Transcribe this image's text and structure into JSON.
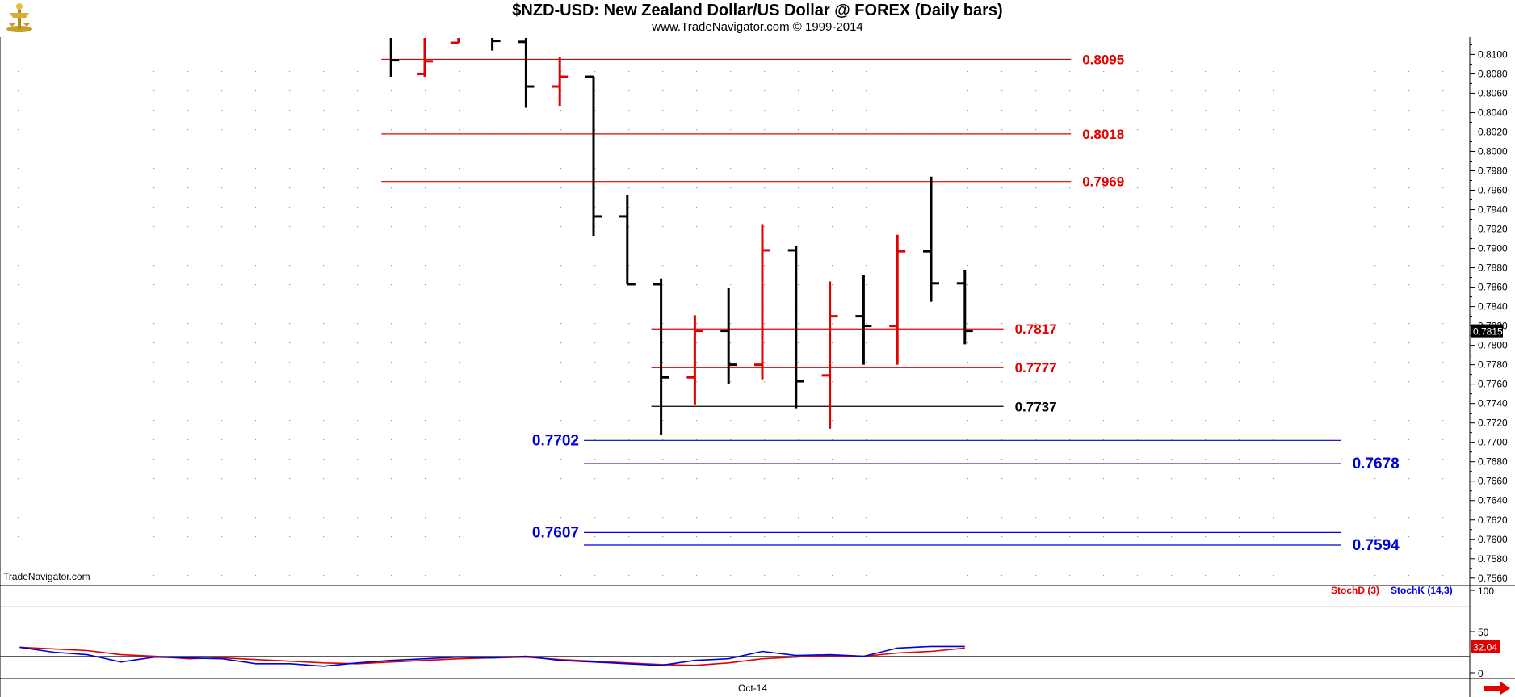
{
  "header": {
    "title": "$NZD-USD:  New Zealand Dollar/US Dollar @ FOREX  (Daily bars)",
    "subtitle": "www.TradeNavigator.com © 1999-2014"
  },
  "watermark": "TradeNavigator.com",
  "indicator_legend": {
    "stoch_d": "StochD (3)",
    "stoch_k": "StochK (14,3)"
  },
  "colors": {
    "up_bar": "#e00000",
    "down_bar": "#000000",
    "red_level": "#e00000",
    "blue_level": "#0000dd",
    "black_level": "#000000",
    "stoch_d": "#e00000",
    "stoch_k": "#0000dd",
    "grid_dot": "#9a9a9a"
  },
  "chart_data": [
    {
      "type": "ohlc",
      "title": "$NZD-USD:  New Zealand Dollar/US Dollar @ FOREX  (Daily bars)",
      "ylim": [
        0.7554,
        0.8117
      ],
      "y_ticks": [
        "0.8100",
        "0.8080",
        "0.8060",
        "0.8040",
        "0.8020",
        "0.8000",
        "0.7980",
        "0.7960",
        "0.7940",
        "0.7920",
        "0.7900",
        "0.7880",
        "0.7860",
        "0.7840",
        "0.7820",
        "0.7800",
        "0.7780",
        "0.7760",
        "0.7740",
        "0.7720",
        "0.7700",
        "0.7680",
        "0.7660",
        "0.7640",
        "0.7620",
        "0.7600",
        "0.7580",
        "0.7560"
      ],
      "x_labels": [
        {
          "label": "Oct-14",
          "bar": 10
        }
      ],
      "last_price": "0.7815",
      "bars": [
        {
          "i": -1,
          "o": 0.812,
          "h": 0.8125,
          "l": 0.8077,
          "c": 0.8094
        },
        {
          "i": 0,
          "o": 0.808,
          "h": 0.8125,
          "l": 0.8077,
          "c": 0.8093
        },
        {
          "i": 1,
          "o": 0.8112,
          "h": 0.8125,
          "l": 0.8112,
          "c": 0.812
        },
        {
          "i": 2,
          "o": 0.8121,
          "h": 0.8125,
          "l": 0.8104,
          "c": 0.8114
        },
        {
          "i": 3,
          "o": 0.8113,
          "h": 0.812,
          "l": 0.8045,
          "c": 0.8067
        },
        {
          "i": 4,
          "o": 0.8067,
          "h": 0.8097,
          "l": 0.8047,
          "c": 0.8077
        },
        {
          "i": 5,
          "o": 0.8077,
          "h": 0.8077,
          "l": 0.7913,
          "c": 0.7933
        },
        {
          "i": 6,
          "o": 0.7933,
          "h": 0.7955,
          "l": 0.7863,
          "c": 0.7863
        },
        {
          "i": 7,
          "o": 0.7863,
          "h": 0.7869,
          "l": 0.7708,
          "c": 0.7767
        },
        {
          "i": 8,
          "o": 0.7767,
          "h": 0.7831,
          "l": 0.7739,
          "c": 0.7815
        },
        {
          "i": 9,
          "o": 0.7815,
          "h": 0.7859,
          "l": 0.776,
          "c": 0.778
        },
        {
          "i": 10,
          "o": 0.778,
          "h": 0.7925,
          "l": 0.7765,
          "c": 0.7898
        },
        {
          "i": 11,
          "o": 0.7898,
          "h": 0.7903,
          "l": 0.7735,
          "c": 0.7763
        },
        {
          "i": 12,
          "o": 0.7769,
          "h": 0.7866,
          "l": 0.7714,
          "c": 0.783
        },
        {
          "i": 13,
          "o": 0.783,
          "h": 0.7873,
          "l": 0.778,
          "c": 0.782
        },
        {
          "i": 14,
          "o": 0.782,
          "h": 0.7914,
          "l": 0.778,
          "c": 0.7897
        },
        {
          "i": 15,
          "o": 0.7897,
          "h": 0.7974,
          "l": 0.7845,
          "c": 0.7864
        },
        {
          "i": 16,
          "o": 0.7864,
          "h": 0.7878,
          "l": 0.7801,
          "c": 0.7815
        }
      ],
      "levels": [
        {
          "value": "0.8095",
          "color": "red",
          "from": -1,
          "to": 19,
          "label_side": "right"
        },
        {
          "value": "0.8018",
          "color": "red",
          "from": -1,
          "to": 19,
          "label_side": "right"
        },
        {
          "value": "0.7969",
          "color": "red",
          "from": -1,
          "to": 19,
          "label_side": "right"
        },
        {
          "value": "0.7817",
          "color": "red",
          "from": 7,
          "to": 17,
          "label_side": "right"
        },
        {
          "value": "0.7777",
          "color": "red",
          "from": 7,
          "to": 17,
          "label_side": "right"
        },
        {
          "value": "0.7737",
          "color": "black",
          "from": 7,
          "to": 17,
          "label_side": "right"
        },
        {
          "value": "0.7702",
          "color": "blue",
          "from": 5,
          "to": 27,
          "label_side": "left"
        },
        {
          "value": "0.7678",
          "color": "blue",
          "from": 5,
          "to": 27,
          "label_side": "right"
        },
        {
          "value": "0.7607",
          "color": "blue",
          "from": 5,
          "to": 27,
          "label_side": "left"
        },
        {
          "value": "0.7594",
          "color": "blue",
          "from": 5,
          "to": 27,
          "label_side": "right"
        }
      ]
    },
    {
      "type": "line",
      "title": "",
      "ylim": [
        0,
        100
      ],
      "y_ticks": [
        "100",
        "50",
        "0"
      ],
      "reference_lines": [
        80,
        20
      ],
      "last_value": "32.04",
      "series": [
        {
          "name": "StochD (3)",
          "color": "red",
          "x": [
            -12,
            -11,
            -10,
            -9,
            -8,
            -7,
            -6,
            -5,
            -4,
            -3,
            -2,
            -1,
            0,
            1,
            2,
            3,
            4,
            5,
            6,
            7,
            8,
            9,
            10,
            11,
            12,
            13,
            14,
            15,
            16
          ],
          "values": [
            31,
            29,
            27,
            22,
            20,
            17,
            18,
            16,
            14,
            12,
            11,
            13,
            15,
            17,
            18,
            19,
            16,
            14,
            12,
            10,
            9,
            12,
            17,
            19,
            21,
            20,
            24,
            26,
            30
          ]
        },
        {
          "name": "StochK (14,3)",
          "color": "blue",
          "x": [
            -12,
            -11,
            -10,
            -9,
            -8,
            -7,
            -6,
            -5,
            -4,
            -3,
            -2,
            -1,
            0,
            1,
            2,
            3,
            4,
            5,
            6,
            7,
            8,
            9,
            10,
            11,
            12,
            13,
            14,
            15,
            16
          ],
          "values": [
            31,
            25,
            22,
            13,
            19,
            18,
            17,
            11,
            11,
            8,
            12,
            15,
            17,
            19,
            18,
            20,
            15,
            13,
            11,
            9,
            15,
            17,
            26,
            21,
            22,
            20,
            30,
            32,
            32
          ]
        }
      ]
    }
  ]
}
